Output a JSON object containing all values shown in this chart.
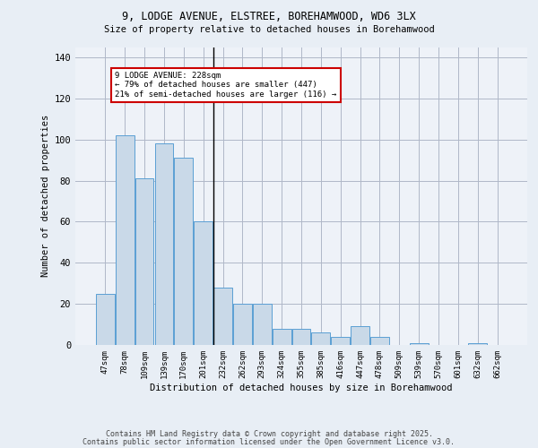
{
  "title1": "9, LODGE AVENUE, ELSTREE, BOREHAMWOOD, WD6 3LX",
  "title2": "Size of property relative to detached houses in Borehamwood",
  "xlabel": "Distribution of detached houses by size in Borehamwood",
  "ylabel": "Number of detached properties",
  "categories": [
    "47sqm",
    "78sqm",
    "109sqm",
    "139sqm",
    "170sqm",
    "201sqm",
    "232sqm",
    "262sqm",
    "293sqm",
    "324sqm",
    "355sqm",
    "385sqm",
    "416sqm",
    "447sqm",
    "478sqm",
    "509sqm",
    "539sqm",
    "570sqm",
    "601sqm",
    "632sqm",
    "662sqm"
  ],
  "values": [
    25,
    102,
    81,
    98,
    91,
    60,
    28,
    20,
    20,
    8,
    8,
    6,
    4,
    9,
    4,
    0,
    1,
    0,
    0,
    1,
    0
  ],
  "bar_color": "#c9d9e8",
  "bar_edge_color": "#5a9fd4",
  "highlight_index": 5,
  "highlight_line_color": "#000000",
  "annotation_text": "9 LODGE AVENUE: 228sqm\n← 79% of detached houses are smaller (447)\n21% of semi-detached houses are larger (116) →",
  "annotation_box_color": "#ffffff",
  "annotation_box_edge_color": "#cc0000",
  "ylim": [
    0,
    145
  ],
  "yticks": [
    0,
    20,
    40,
    60,
    80,
    100,
    120,
    140
  ],
  "bg_color": "#e8eef5",
  "plot_bg_color": "#eef2f8",
  "footer1": "Contains HM Land Registry data © Crown copyright and database right 2025.",
  "footer2": "Contains public sector information licensed under the Open Government Licence v3.0."
}
